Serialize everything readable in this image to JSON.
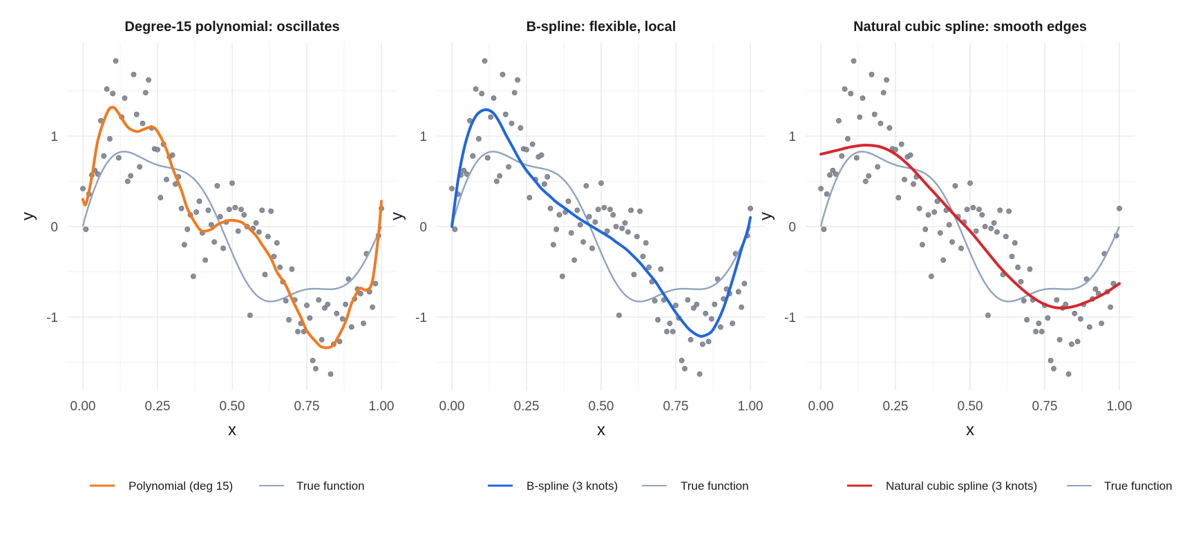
{
  "chart_data": [
    {
      "type": "line",
      "title": "Degree-15 polynomial: oscillates",
      "xlabel": "x",
      "ylabel": "y",
      "xlim": [
        0,
        1
      ],
      "ylim": [
        -1.8,
        2.0
      ],
      "x_ticks": [
        0,
        0.25,
        0.5,
        0.75,
        1
      ],
      "x_tick_labels": [
        "0.00",
        "0.25",
        "0.50",
        "0.75",
        "1.00"
      ],
      "y_ticks": [
        -1,
        0,
        1
      ],
      "y_tick_labels": [
        "-1",
        "0",
        "1"
      ],
      "grid": true,
      "legend_position": "bottom",
      "series": [
        {
          "name": "Polynomial (deg 15)",
          "color": "#F27A1F",
          "x": [
            0,
            0.01,
            0.03,
            0.05,
            0.08,
            0.1,
            0.12,
            0.15,
            0.18,
            0.2,
            0.23,
            0.25,
            0.28,
            0.3,
            0.33,
            0.35,
            0.38,
            0.4,
            0.43,
            0.45,
            0.48,
            0.5,
            0.53,
            0.55,
            0.58,
            0.6,
            0.63,
            0.65,
            0.68,
            0.7,
            0.73,
            0.75,
            0.78,
            0.8,
            0.83,
            0.85,
            0.88,
            0.9,
            0.92,
            0.93,
            0.95,
            0.97,
            0.99,
            1.0
          ],
          "y": [
            0.3,
            0.25,
            0.55,
            0.95,
            1.25,
            1.32,
            1.25,
            1.1,
            1.05,
            1.07,
            1.1,
            1.05,
            0.85,
            0.65,
            0.4,
            0.2,
            0.02,
            -0.05,
            -0.03,
            0.02,
            0.06,
            0.07,
            0.05,
            0.0,
            -0.1,
            -0.2,
            -0.35,
            -0.5,
            -0.65,
            -0.8,
            -1.0,
            -1.15,
            -1.27,
            -1.33,
            -1.33,
            -1.25,
            -1.05,
            -0.85,
            -0.72,
            -0.68,
            -0.7,
            -0.6,
            -0.1,
            0.28
          ]
        },
        {
          "name": "True function",
          "color": "#8FA3BF",
          "fn": "sin(2*pi*x^0.9)*(1+0.3*cos(4*pi*x))"
        }
      ],
      "points": {
        "x": [
          0.0,
          0.01,
          0.02,
          0.03,
          0.04,
          0.05,
          0.06,
          0.07,
          0.08,
          0.09,
          0.1,
          0.11,
          0.12,
          0.13,
          0.14,
          0.15,
          0.16,
          0.17,
          0.18,
          0.19,
          0.2,
          0.21,
          0.22,
          0.23,
          0.24,
          0.25,
          0.26,
          0.27,
          0.28,
          0.29,
          0.3,
          0.31,
          0.32,
          0.33,
          0.34,
          0.35,
          0.36,
          0.37,
          0.38,
          0.39,
          0.4,
          0.41,
          0.42,
          0.43,
          0.44,
          0.45,
          0.46,
          0.47,
          0.48,
          0.49,
          0.5,
          0.51,
          0.52,
          0.53,
          0.54,
          0.55,
          0.56,
          0.57,
          0.58,
          0.59,
          0.6,
          0.61,
          0.62,
          0.63,
          0.64,
          0.65,
          0.66,
          0.67,
          0.68,
          0.69,
          0.7,
          0.71,
          0.72,
          0.73,
          0.74,
          0.75,
          0.76,
          0.77,
          0.78,
          0.79,
          0.8,
          0.81,
          0.82,
          0.83,
          0.84,
          0.85,
          0.86,
          0.87,
          0.88,
          0.89,
          0.9,
          0.91,
          0.92,
          0.93,
          0.94,
          0.95,
          0.96,
          0.97,
          0.98,
          0.99,
          1.0
        ],
        "y": [
          0.42,
          -0.03,
          0.36,
          0.57,
          0.62,
          0.58,
          1.17,
          0.78,
          1.52,
          0.97,
          1.47,
          1.83,
          0.76,
          1.21,
          1.42,
          0.5,
          0.56,
          1.68,
          1.24,
          0.66,
          1.14,
          1.48,
          1.62,
          1.09,
          0.86,
          0.85,
          0.32,
          0.91,
          0.52,
          0.77,
          0.79,
          0.47,
          0.55,
          0.2,
          -0.2,
          -0.03,
          0.13,
          -0.55,
          0.16,
          0.28,
          -0.07,
          -0.37,
          0.18,
          0.02,
          -0.17,
          0.45,
          0.11,
          -0.24,
          0.05,
          0.19,
          0.48,
          0.21,
          -0.05,
          0.19,
          0.13,
          0.0,
          -0.98,
          -0.02,
          0.04,
          -0.06,
          0.18,
          -0.53,
          -0.11,
          0.17,
          -0.33,
          -0.18,
          -0.45,
          -0.61,
          -0.82,
          -1.03,
          -0.47,
          -0.81,
          -1.16,
          -1.07,
          -1.16,
          -0.87,
          -1.01,
          -1.48,
          -1.57,
          -0.81,
          -1.25,
          -0.9,
          -0.86,
          -1.63,
          -1.3,
          -0.96,
          -1.27,
          -1.02,
          -0.86,
          -0.58,
          -1.11,
          -0.8,
          -0.69,
          -0.74,
          -1.07,
          -0.3,
          -0.72,
          -0.89,
          -0.63,
          -0.1,
          0.2
        ]
      }
    },
    {
      "type": "line",
      "title": "B-spline: flexible, local",
      "xlabel": "x",
      "ylabel": "y",
      "xlim": [
        0,
        1
      ],
      "ylim": [
        -1.8,
        2.0
      ],
      "x_ticks": [
        0,
        0.25,
        0.5,
        0.75,
        1
      ],
      "x_tick_labels": [
        "0.00",
        "0.25",
        "0.50",
        "0.75",
        "1.00"
      ],
      "y_ticks": [
        -1,
        0,
        1
      ],
      "y_tick_labels": [
        "-1",
        "0",
        "1"
      ],
      "grid": true,
      "legend_position": "bottom",
      "series": [
        {
          "name": "B-spline (3 knots)",
          "color": "#2166E0",
          "x": [
            0,
            0.02,
            0.04,
            0.06,
            0.08,
            0.1,
            0.12,
            0.14,
            0.16,
            0.18,
            0.2,
            0.23,
            0.25,
            0.28,
            0.3,
            0.33,
            0.35,
            0.38,
            0.4,
            0.43,
            0.45,
            0.48,
            0.5,
            0.53,
            0.55,
            0.58,
            0.6,
            0.63,
            0.65,
            0.68,
            0.7,
            0.73,
            0.75,
            0.78,
            0.8,
            0.83,
            0.85,
            0.87,
            0.89,
            0.91,
            0.93,
            0.95,
            0.97,
            0.99,
            1.0
          ],
          "y": [
            0.0,
            0.5,
            0.85,
            1.08,
            1.22,
            1.28,
            1.29,
            1.25,
            1.15,
            1.02,
            0.9,
            0.72,
            0.62,
            0.5,
            0.42,
            0.33,
            0.27,
            0.2,
            0.15,
            0.08,
            0.04,
            -0.02,
            -0.06,
            -0.12,
            -0.17,
            -0.24,
            -0.3,
            -0.4,
            -0.48,
            -0.6,
            -0.7,
            -0.85,
            -0.95,
            -1.08,
            -1.15,
            -1.21,
            -1.2,
            -1.16,
            -1.05,
            -0.9,
            -0.7,
            -0.48,
            -0.25,
            -0.05,
            0.1
          ]
        },
        {
          "name": "True function",
          "color": "#8FA3BF",
          "fn": "sin(2*pi*x^0.9)*(1+0.3*cos(4*pi*x))"
        }
      ],
      "points": {
        "x": [
          0.0,
          0.01,
          0.02,
          0.03,
          0.04,
          0.05,
          0.06,
          0.07,
          0.08,
          0.09,
          0.1,
          0.11,
          0.12,
          0.13,
          0.14,
          0.15,
          0.16,
          0.17,
          0.18,
          0.19,
          0.2,
          0.21,
          0.22,
          0.23,
          0.24,
          0.25,
          0.26,
          0.27,
          0.28,
          0.29,
          0.3,
          0.31,
          0.32,
          0.33,
          0.34,
          0.35,
          0.36,
          0.37,
          0.38,
          0.39,
          0.4,
          0.41,
          0.42,
          0.43,
          0.44,
          0.45,
          0.46,
          0.47,
          0.48,
          0.49,
          0.5,
          0.51,
          0.52,
          0.53,
          0.54,
          0.55,
          0.56,
          0.57,
          0.58,
          0.59,
          0.6,
          0.61,
          0.62,
          0.63,
          0.64,
          0.65,
          0.66,
          0.67,
          0.68,
          0.69,
          0.7,
          0.71,
          0.72,
          0.73,
          0.74,
          0.75,
          0.76,
          0.77,
          0.78,
          0.79,
          0.8,
          0.81,
          0.82,
          0.83,
          0.84,
          0.85,
          0.86,
          0.87,
          0.88,
          0.89,
          0.9,
          0.91,
          0.92,
          0.93,
          0.94,
          0.95,
          0.96,
          0.97,
          0.98,
          0.99,
          1.0
        ],
        "y": [
          0.42,
          -0.03,
          0.36,
          0.57,
          0.62,
          0.58,
          1.17,
          0.78,
          1.52,
          0.97,
          1.47,
          1.83,
          0.76,
          1.21,
          1.42,
          0.5,
          0.56,
          1.68,
          1.24,
          0.66,
          1.14,
          1.48,
          1.62,
          1.09,
          0.86,
          0.85,
          0.32,
          0.91,
          0.52,
          0.77,
          0.79,
          0.47,
          0.55,
          0.2,
          -0.2,
          -0.03,
          0.13,
          -0.55,
          0.16,
          0.28,
          -0.07,
          -0.37,
          0.18,
          0.02,
          -0.17,
          0.45,
          0.11,
          -0.24,
          0.05,
          0.19,
          0.48,
          0.21,
          -0.05,
          0.19,
          0.13,
          0.0,
          -0.98,
          -0.02,
          0.04,
          -0.06,
          0.18,
          -0.53,
          -0.11,
          0.17,
          -0.33,
          -0.18,
          -0.45,
          -0.61,
          -0.82,
          -1.03,
          -0.47,
          -0.81,
          -1.16,
          -1.07,
          -1.16,
          -0.87,
          -1.01,
          -1.48,
          -1.57,
          -0.81,
          -1.25,
          -0.9,
          -0.86,
          -1.63,
          -1.3,
          -0.96,
          -1.27,
          -1.02,
          -0.86,
          -0.58,
          -1.11,
          -0.8,
          -0.69,
          -0.74,
          -1.07,
          -0.3,
          -0.72,
          -0.89,
          -0.63,
          -0.1,
          0.2
        ]
      }
    },
    {
      "type": "line",
      "title": "Natural cubic spline: smooth edges",
      "xlabel": "x",
      "ylabel": "y",
      "xlim": [
        0,
        1
      ],
      "ylim": [
        -1.8,
        2.0
      ],
      "x_ticks": [
        0,
        0.25,
        0.5,
        0.75,
        1
      ],
      "x_tick_labels": [
        "0.00",
        "0.25",
        "0.50",
        "0.75",
        "1.00"
      ],
      "y_ticks": [
        -1,
        0,
        1
      ],
      "y_tick_labels": [
        "-1",
        "0",
        "1"
      ],
      "grid": true,
      "legend_position": "bottom",
      "series": [
        {
          "name": "Natural cubic spline (3 knots)",
          "color": "#D9262B",
          "x": [
            0,
            0.05,
            0.1,
            0.15,
            0.2,
            0.25,
            0.3,
            0.35,
            0.4,
            0.45,
            0.5,
            0.55,
            0.6,
            0.65,
            0.7,
            0.75,
            0.8,
            0.85,
            0.9,
            0.95,
            1.0
          ],
          "y": [
            0.8,
            0.84,
            0.88,
            0.9,
            0.88,
            0.8,
            0.66,
            0.48,
            0.3,
            0.12,
            -0.05,
            -0.25,
            -0.45,
            -0.62,
            -0.76,
            -0.86,
            -0.9,
            -0.88,
            -0.82,
            -0.74,
            -0.63
          ]
        },
        {
          "name": "True function",
          "color": "#8FA3BF",
          "fn": "sin(2*pi*x^0.9)*(1+0.3*cos(4*pi*x))"
        }
      ],
      "points": {
        "x": [
          0.0,
          0.01,
          0.02,
          0.03,
          0.04,
          0.05,
          0.06,
          0.07,
          0.08,
          0.09,
          0.1,
          0.11,
          0.12,
          0.13,
          0.14,
          0.15,
          0.16,
          0.17,
          0.18,
          0.19,
          0.2,
          0.21,
          0.22,
          0.23,
          0.24,
          0.25,
          0.26,
          0.27,
          0.28,
          0.29,
          0.3,
          0.31,
          0.32,
          0.33,
          0.34,
          0.35,
          0.36,
          0.37,
          0.38,
          0.39,
          0.4,
          0.41,
          0.42,
          0.43,
          0.44,
          0.45,
          0.46,
          0.47,
          0.48,
          0.49,
          0.5,
          0.51,
          0.52,
          0.53,
          0.54,
          0.55,
          0.56,
          0.57,
          0.58,
          0.59,
          0.6,
          0.61,
          0.62,
          0.63,
          0.64,
          0.65,
          0.66,
          0.67,
          0.68,
          0.69,
          0.7,
          0.71,
          0.72,
          0.73,
          0.74,
          0.75,
          0.76,
          0.77,
          0.78,
          0.79,
          0.8,
          0.81,
          0.82,
          0.83,
          0.84,
          0.85,
          0.86,
          0.87,
          0.88,
          0.89,
          0.9,
          0.91,
          0.92,
          0.93,
          0.94,
          0.95,
          0.96,
          0.97,
          0.98,
          0.99,
          1.0
        ],
        "y": [
          0.42,
          -0.03,
          0.36,
          0.57,
          0.62,
          0.58,
          1.17,
          0.78,
          1.52,
          0.97,
          1.47,
          1.83,
          0.76,
          1.21,
          1.42,
          0.5,
          0.56,
          1.68,
          1.24,
          0.66,
          1.14,
          1.48,
          1.62,
          1.09,
          0.86,
          0.85,
          0.32,
          0.91,
          0.52,
          0.77,
          0.79,
          0.47,
          0.55,
          0.2,
          -0.2,
          -0.03,
          0.13,
          -0.55,
          0.16,
          0.28,
          -0.07,
          -0.37,
          0.18,
          0.02,
          -0.17,
          0.45,
          0.11,
          -0.24,
          0.05,
          0.19,
          0.48,
          0.21,
          -0.05,
          0.19,
          0.13,
          0.0,
          -0.98,
          -0.02,
          0.04,
          -0.06,
          0.18,
          -0.53,
          -0.11,
          0.17,
          -0.33,
          -0.18,
          -0.45,
          -0.61,
          -0.82,
          -1.03,
          -0.47,
          -0.81,
          -1.16,
          -1.07,
          -1.16,
          -0.87,
          -1.01,
          -1.48,
          -1.57,
          -0.81,
          -1.25,
          -0.9,
          -0.86,
          -1.63,
          -1.3,
          -0.96,
          -1.27,
          -1.02,
          -0.86,
          -0.58,
          -1.11,
          -0.8,
          -0.69,
          -0.74,
          -1.07,
          -0.3,
          -0.72,
          -0.89,
          -0.63,
          -0.1,
          0.2
        ]
      }
    }
  ]
}
